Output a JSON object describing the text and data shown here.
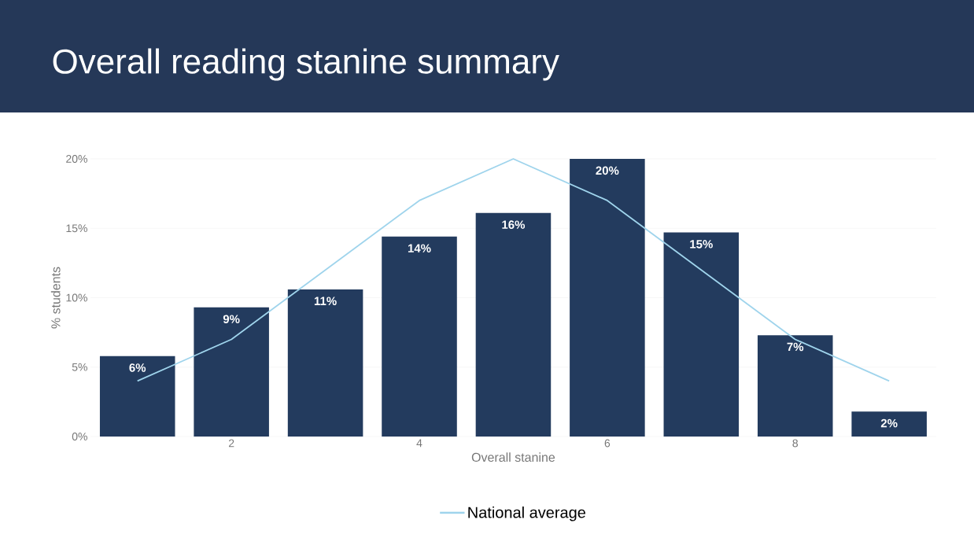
{
  "chart_data": {
    "type": "bar",
    "title": "Overall reading stanine summary",
    "x": [
      1,
      2,
      3,
      4,
      5,
      6,
      7,
      8,
      9
    ],
    "xlabel": "Overall stanine",
    "ylabel": "% students",
    "xlim": [
      0.5,
      9.5
    ],
    "xticks": [
      2,
      4,
      6,
      8
    ],
    "ylim": [
      0,
      20
    ],
    "yticks": [
      {
        "value": 0,
        "label": "0%"
      },
      {
        "value": 5,
        "label": "5%"
      },
      {
        "value": 10,
        "label": "10%"
      },
      {
        "value": 15,
        "label": "15%"
      },
      {
        "value": 20,
        "label": "20%"
      }
    ],
    "series": [
      {
        "color": "#233b5e",
        "values": [
          5.8,
          9.3,
          10.6,
          14.4,
          16.1,
          20.0,
          14.7,
          7.3,
          1.8
        ],
        "value_labels": [
          "6%",
          "9%",
          "11%",
          "14%",
          "16%",
          "20%",
          "15%",
          "7%",
          "2%"
        ]
      },
      {
        "type": "line",
        "name": "National average",
        "color": "#9fd4ec",
        "values": [
          4,
          7,
          12,
          17,
          20,
          17,
          12,
          7,
          4
        ]
      }
    ],
    "grid": "y",
    "legend": "bottom"
  }
}
